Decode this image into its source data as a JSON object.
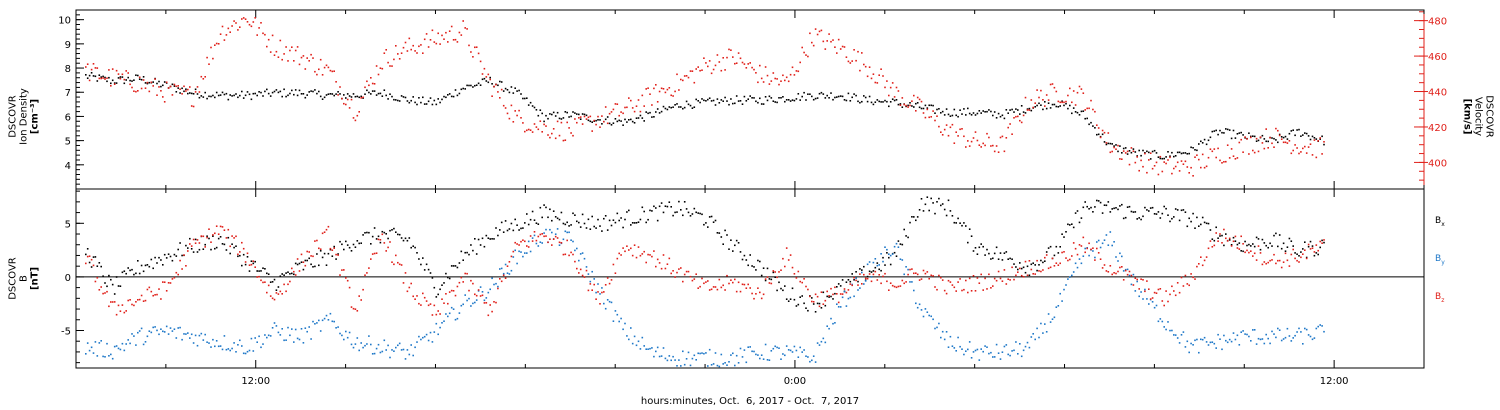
{
  "chart_data": [
    {
      "type": "scatter",
      "panel": "top",
      "ylabel_lines": [
        "DSCOVR",
        "Ion Density",
        "[cm⁻³]"
      ],
      "y2label_lines": [
        "DSCOVR",
        "Velocity",
        "[km/s]"
      ],
      "ylim": [
        3.0,
        10.4
      ],
      "y_ticks": [
        4,
        5,
        6,
        7,
        8,
        9,
        10
      ],
      "y2lim": [
        385,
        486
      ],
      "y2_ticks": [
        400,
        420,
        440,
        460,
        480
      ],
      "y2_color": "#e0201a",
      "series": [
        {
          "role": "Ion Density (left axis)",
          "color": "#000000",
          "x": [
            8.2,
            8.8,
            9.4,
            10.0,
            10.6,
            11.2,
            11.8,
            12.4,
            13.0,
            13.6,
            14.2,
            14.8,
            15.4,
            16.0,
            16.6,
            17.2,
            17.8,
            18.4,
            19.0,
            19.6,
            20.2,
            20.8,
            21.4,
            22.0,
            22.6,
            23.2,
            23.8,
            24.4,
            25.0,
            25.6,
            26.2,
            26.8,
            27.4,
            28.0,
            28.6,
            29.2,
            29.8,
            30.4,
            31.0,
            31.6,
            32.2,
            32.8,
            33.4,
            34.0,
            34.6,
            35.2,
            35.8
          ],
          "y": [
            7.7,
            7.5,
            7.6,
            7.3,
            7.0,
            6.9,
            6.9,
            7.0,
            7.0,
            6.9,
            6.9,
            7.0,
            6.7,
            6.6,
            7.2,
            7.5,
            7.0,
            6.0,
            6.1,
            5.9,
            5.8,
            6.1,
            6.5,
            6.6,
            6.7,
            6.7,
            6.8,
            6.9,
            6.9,
            6.7,
            6.6,
            6.4,
            6.2,
            6.2,
            6.1,
            6.4,
            6.6,
            6.1,
            4.8,
            4.5,
            4.4,
            4.6,
            5.4,
            5.2,
            5.0,
            5.4,
            5.0
          ]
        },
        {
          "role": "Velocity (right axis)",
          "color": "#e0201a",
          "x": [
            8.2,
            8.8,
            9.4,
            10.0,
            10.6,
            11.2,
            11.8,
            12.4,
            13.0,
            13.6,
            14.2,
            14.8,
            15.4,
            16.0,
            16.6,
            17.2,
            17.8,
            18.4,
            19.0,
            19.6,
            20.2,
            20.8,
            21.4,
            22.0,
            22.6,
            23.2,
            23.8,
            24.4,
            25.0,
            25.6,
            26.2,
            26.8,
            27.4,
            28.0,
            28.6,
            29.2,
            29.8,
            30.4,
            31.0,
            31.6,
            32.2,
            32.8,
            33.4,
            34.0,
            34.6,
            35.2,
            35.8
          ],
          "y": [
            452,
            448,
            445,
            440,
            438,
            474,
            482,
            466,
            460,
            452,
            430,
            458,
            465,
            470,
            475,
            445,
            425,
            420,
            418,
            425,
            430,
            438,
            445,
            455,
            460,
            450,
            445,
            472,
            465,
            455,
            440,
            430,
            418,
            412,
            410,
            435,
            440,
            438,
            410,
            402,
            398,
            398,
            405,
            410,
            415,
            410,
            408
          ]
        }
      ]
    },
    {
      "type": "scatter",
      "panel": "bottom",
      "ylabel_lines": [
        "DSCOVR",
        "B",
        "[nT]"
      ],
      "ylim": [
        -8.5,
        8.2
      ],
      "y_ticks": [
        -5,
        0,
        5
      ],
      "zero_line": true,
      "series": [
        {
          "legend": "B",
          "sub": "x",
          "color": "#000000",
          "x": [
            8.2,
            8.8,
            9.4,
            10.0,
            10.6,
            11.2,
            11.8,
            12.4,
            13.0,
            13.6,
            14.2,
            14.8,
            15.4,
            16.0,
            16.6,
            17.2,
            17.8,
            18.4,
            19.0,
            19.6,
            20.2,
            20.8,
            21.4,
            22.0,
            22.6,
            23.2,
            23.8,
            24.4,
            25.0,
            25.6,
            26.2,
            26.8,
            27.4,
            28.0,
            28.6,
            29.2,
            29.8,
            30.4,
            31.0,
            31.6,
            32.2,
            32.8,
            33.4,
            34.0,
            34.6,
            35.2,
            35.8
          ],
          "y": [
            2.5,
            -1.0,
            1.0,
            2.0,
            3.0,
            3.5,
            1.5,
            -0.5,
            1.0,
            2.0,
            3.5,
            4.0,
            3.5,
            -1.0,
            2.0,
            4.0,
            5.0,
            6.0,
            5.5,
            5.0,
            5.5,
            6.0,
            6.5,
            5.5,
            3.0,
            1.0,
            -1.5,
            -2.5,
            -1.0,
            0.5,
            2.0,
            7.0,
            6.5,
            3.0,
            2.0,
            1.0,
            2.5,
            6.5,
            6.5,
            6.0,
            6.0,
            5.5,
            4.0,
            3.0,
            3.5,
            2.5,
            3.0
          ]
        },
        {
          "legend": "B",
          "sub": "y",
          "color": "#1f78c8",
          "x": [
            8.2,
            8.8,
            9.4,
            10.0,
            10.6,
            11.2,
            11.8,
            12.4,
            13.0,
            13.6,
            14.2,
            14.8,
            15.4,
            16.0,
            16.6,
            17.2,
            17.8,
            18.4,
            19.0,
            19.6,
            20.2,
            20.8,
            21.4,
            22.0,
            22.6,
            23.2,
            23.8,
            24.4,
            25.0,
            25.6,
            26.2,
            26.8,
            27.4,
            28.0,
            28.6,
            29.2,
            29.8,
            30.4,
            31.0,
            31.6,
            32.2,
            32.8,
            33.4,
            34.0,
            34.6,
            35.2,
            35.8
          ],
          "y": [
            -6.5,
            -6.8,
            -5.5,
            -5.0,
            -5.5,
            -6.0,
            -6.5,
            -5.0,
            -5.5,
            -4.0,
            -6.0,
            -6.5,
            -7.0,
            -5.0,
            -2.5,
            -1.0,
            2.0,
            4.0,
            3.5,
            -1.0,
            -5.0,
            -7.0,
            -7.5,
            -7.5,
            -7.5,
            -7.0,
            -7.0,
            -7.5,
            -2.5,
            0.5,
            3.0,
            -3.0,
            -6.0,
            -7.0,
            -7.0,
            -6.5,
            -3.0,
            2.0,
            3.5,
            -1.0,
            -4.0,
            -6.5,
            -6.0,
            -5.5,
            -5.5,
            -5.5,
            -5.0
          ]
        },
        {
          "legend": "B",
          "sub": "z",
          "color": "#e0201a",
          "x": [
            8.2,
            8.8,
            9.4,
            10.0,
            10.6,
            11.2,
            11.8,
            12.4,
            13.0,
            13.6,
            14.2,
            14.8,
            15.4,
            16.0,
            16.6,
            17.2,
            17.8,
            18.4,
            19.0,
            19.6,
            20.2,
            20.8,
            21.4,
            22.0,
            22.6,
            23.2,
            23.8,
            24.4,
            25.0,
            25.6,
            26.2,
            26.8,
            27.4,
            28.0,
            28.6,
            29.2,
            29.8,
            30.4,
            31.0,
            31.6,
            32.2,
            32.8,
            33.4,
            34.0,
            34.6,
            35.2,
            35.8
          ],
          "y": [
            2.0,
            -3.0,
            -2.0,
            -1.0,
            3.0,
            4.5,
            2.0,
            -2.0,
            1.5,
            4.0,
            -3.0,
            4.0,
            -1.0,
            -3.5,
            0.0,
            -3.0,
            3.0,
            4.0,
            2.5,
            -2.0,
            3.0,
            2.0,
            0.5,
            -1.0,
            -0.5,
            -1.5,
            2.0,
            -2.0,
            -1.5,
            0.0,
            -0.5,
            0.5,
            -1.0,
            -0.5,
            0.0,
            1.0,
            1.5,
            3.0,
            1.0,
            -0.5,
            -2.0,
            0.0,
            4.0,
            3.0,
            1.5,
            2.0,
            3.0
          ]
        }
      ]
    }
  ],
  "x_axis": {
    "ticks": [
      12,
      24,
      36
    ],
    "tick_labels": [
      "12:00",
      "0:00",
      "12:00"
    ],
    "xlim": [
      8.0,
      38.0
    ],
    "label": "hours:minutes, Oct.  6, 2017 - Oct.  7, 2017"
  },
  "legend": {
    "bx": {
      "base": "B",
      "sub": "x"
    },
    "by": {
      "base": "B",
      "sub": "y"
    },
    "bz": {
      "base": "B",
      "sub": "z"
    }
  },
  "colors": {
    "black": "#000000",
    "red": "#e0201a",
    "blue": "#1f78c8"
  }
}
